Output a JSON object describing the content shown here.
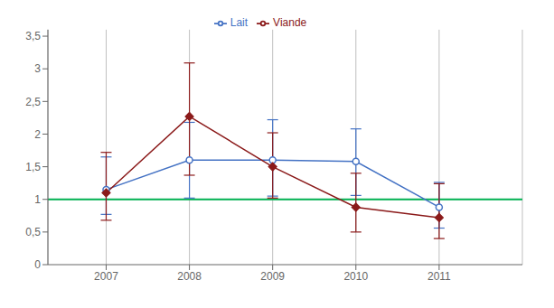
{
  "chart_data": {
    "type": "line",
    "x": [
      2007,
      2008,
      2009,
      2010,
      2011
    ],
    "series": [
      {
        "name": "Lait",
        "color": "#4472c4",
        "marker": "o",
        "line_style": "solid",
        "values": [
          1.15,
          1.6,
          1.6,
          1.58,
          0.88
        ],
        "error_low": [
          0.38,
          0.58,
          0.55,
          0.52,
          0.32
        ],
        "error_high": [
          0.5,
          0.58,
          0.62,
          0.5,
          0.38
        ]
      },
      {
        "name": "Viande",
        "color": "#8b1a1a",
        "marker": "D",
        "line_style": "solid",
        "values": [
          1.1,
          2.27,
          1.5,
          0.88,
          0.72
        ],
        "error_low": [
          0.42,
          0.9,
          0.48,
          0.38,
          0.32
        ],
        "error_high": [
          0.62,
          0.82,
          0.52,
          0.52,
          0.52
        ]
      }
    ],
    "xlim": [
      2006.3,
      2012.0
    ],
    "xticks": [
      2007,
      2008,
      2009,
      2010,
      2011
    ],
    "ylim": [
      0,
      3.6
    ],
    "yticks": [
      0,
      {
        "value": 0.5,
        "label": "0,5"
      },
      1,
      {
        "value": 1.5,
        "label": "1,5"
      },
      2,
      {
        "value": 2.5,
        "label": "2,5"
      },
      3,
      {
        "value": 3.5,
        "label": "3,5"
      }
    ],
    "hline": {
      "y": 1.0,
      "color": "#00b050"
    },
    "grid": "x",
    "legend": "top"
  }
}
